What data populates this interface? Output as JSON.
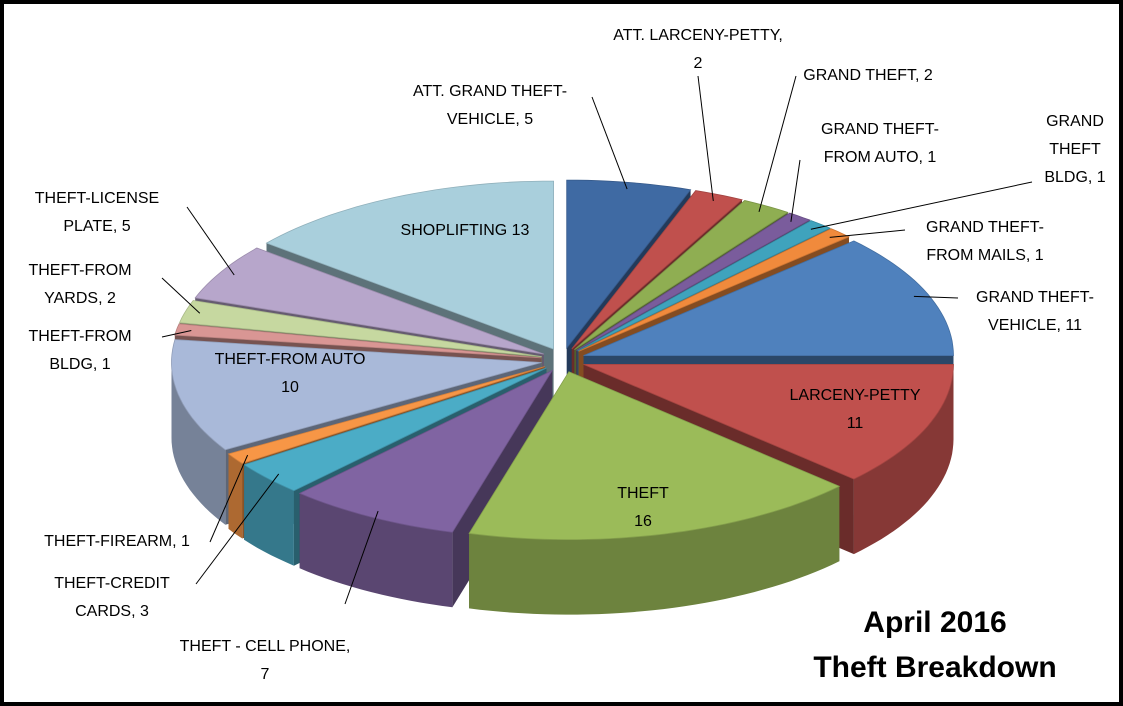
{
  "chart_data": {
    "type": "pie3d",
    "title": [
      "April 2016",
      "Theft Breakdown"
    ],
    "labels": [
      [
        "ATT. GRAND THEFT-",
        "VEHICLE, 5"
      ],
      [
        "ATT. LARCENY-PETTY,",
        "2"
      ],
      [
        "GRAND THEFT, 2"
      ],
      [
        "GRAND THEFT-",
        "FROM AUTO, 1"
      ],
      [
        "GRAND",
        "THEFT",
        "BLDG, 1"
      ],
      [
        "GRAND THEFT-",
        "FROM MAILS, 1"
      ],
      [
        "GRAND THEFT-",
        "VEHICLE, 11"
      ],
      [
        "LARCENY-PETTY",
        "11"
      ],
      [
        "THEFT",
        "16"
      ],
      [
        "THEFT - CELL PHONE,",
        "7"
      ],
      [
        "THEFT-CREDIT",
        "CARDS, 3"
      ],
      [
        "THEFT-FIREARM, 1"
      ],
      [
        "THEFT-FROM AUTO",
        "10"
      ],
      [
        "THEFT-FROM",
        "BLDG, 1"
      ],
      [
        "THEFT-FROM",
        "YARDS, 2"
      ],
      [
        "THEFT-LICENSE",
        "PLATE, 5"
      ],
      [
        "SHOPLIFTING 13"
      ]
    ],
    "values": [
      5,
      2,
      2,
      1,
      1,
      1,
      11,
      11,
      16,
      7,
      3,
      1,
      10,
      1,
      2,
      5,
      13
    ],
    "colors": [
      "#3f6aa3",
      "#c0504d",
      "#8fae52",
      "#7a5c9c",
      "#3fa3bd",
      "#f08a3c",
      "#4f81bd",
      "#c0504d",
      "#9bbb59",
      "#8064a2",
      "#4bacc6",
      "#f79646",
      "#a9b9d9",
      "#d99694",
      "#c6d8a0",
      "#b7a6cb",
      "#a9cfdc"
    ]
  }
}
